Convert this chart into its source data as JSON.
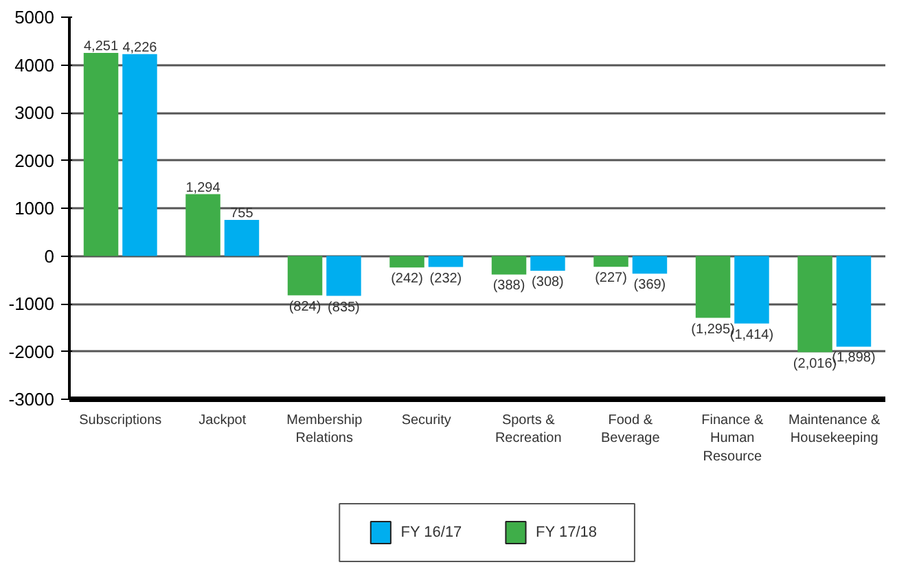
{
  "chart_data": {
    "type": "bar",
    "categories": [
      "Subscriptions",
      "Jackpot",
      "Membership\nRelations",
      "Security",
      "Sports &\nRecreation",
      "Food &\nBeverage",
      "Finance &\nHuman\nResource",
      "Maintenance &\nHousekeeping"
    ],
    "series": [
      {
        "name": "FY 17/18",
        "color": "#3fae49",
        "values": [
          4251,
          1294,
          -824,
          -242,
          -388,
          -227,
          -1295,
          -2016
        ],
        "value_labels": [
          "4,251",
          "1,294",
          "(824)",
          "(242)",
          "(388)",
          "(227)",
          "(1,295)",
          "(2,016)"
        ]
      },
      {
        "name": "FY 16/17",
        "color": "#00aeef",
        "values": [
          4226,
          755,
          -835,
          -232,
          -308,
          -369,
          -1414,
          -1898
        ],
        "value_labels": [
          "4,226",
          "755",
          "(835)",
          "(232)",
          "(308)",
          "(369)",
          "(1,414)",
          "(1,898)"
        ]
      }
    ],
    "ylim": [
      -3000,
      5000
    ],
    "yticks": [
      -3000,
      -2000,
      -1000,
      0,
      1000,
      2000,
      3000,
      4000,
      5000
    ],
    "grid": "y",
    "legend": "bottom"
  }
}
